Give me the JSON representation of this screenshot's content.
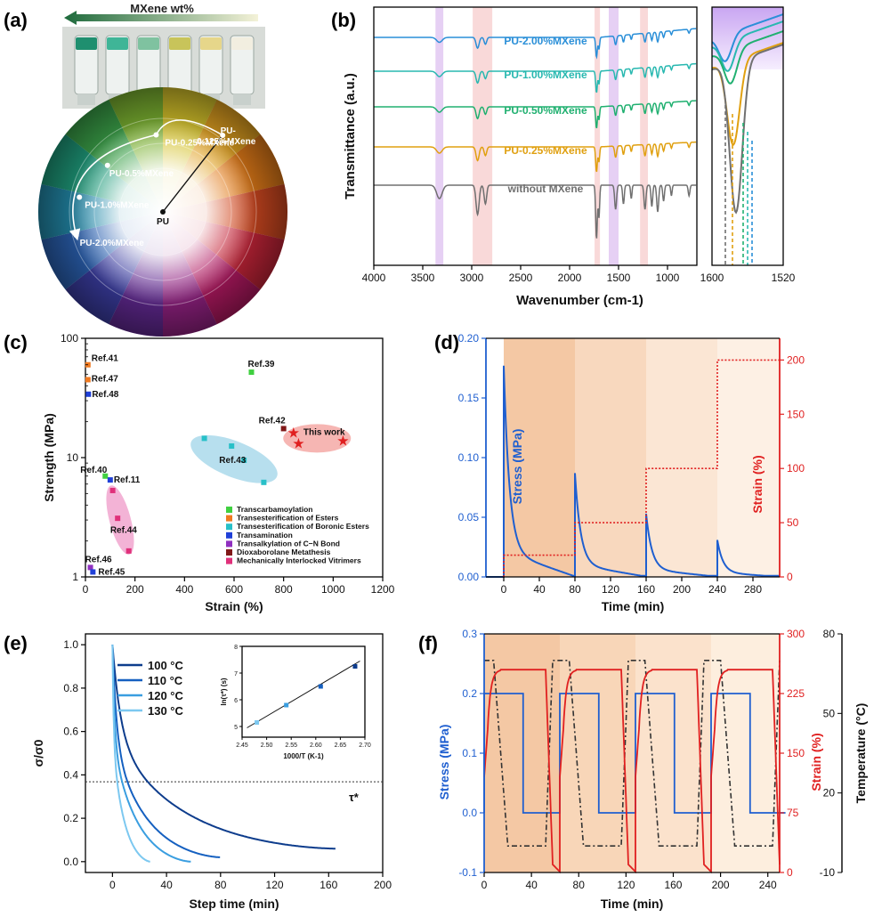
{
  "panels": {
    "a": "(a)",
    "b": "(b)",
    "c": "(c)",
    "d": "(d)",
    "e": "(e)",
    "f": "(f)"
  },
  "panel_a": {
    "arrow_label": "MXene wt%",
    "center_label": "PU",
    "points": [
      "PU-0.125%MXene",
      "PU-0.25%MXene",
      "PU-0.5%MXene",
      "PU-1.0%MXene",
      "PU-2.0%MXene"
    ],
    "vial_colors": [
      "#1f8f6f",
      "#3fb597",
      "#7fc2a0",
      "#c8c45a",
      "#e6d68a",
      "#f2eee0"
    ],
    "wheel_colors": [
      "#d4c12a",
      "#e0a020",
      "#e07a18",
      "#d04820",
      "#c42438",
      "#b01860",
      "#902080",
      "#602890",
      "#3a3ca0",
      "#2a60b0",
      "#2288a8",
      "#1e9a7a",
      "#3aa048",
      "#7ab030"
    ]
  },
  "chart_data": [
    {
      "id": "b",
      "type": "line",
      "xlabel": "Wavenumber (cm-1)",
      "ylabel": "Transmittance (a.u.)",
      "xlim": [
        4000,
        700
      ],
      "x_ticks": [
        4000,
        3500,
        3000,
        2500,
        2000,
        1500,
        1000
      ],
      "inset_xlim": [
        1600,
        1520
      ],
      "inset_ticks": [
        "1600",
        "1520"
      ],
      "highlight_bands": [
        {
          "from": 3370,
          "to": 3290,
          "color": "#e2c8f2"
        },
        {
          "from": 2990,
          "to": 2790,
          "color": "#f8d2d2"
        },
        {
          "from": 1745,
          "to": 1690,
          "color": "#f8d2d2"
        },
        {
          "from": 1600,
          "to": 1500,
          "color": "#e2c8f2"
        },
        {
          "from": 1280,
          "to": 1200,
          "color": "#f8d2d2"
        }
      ],
      "series": [
        {
          "name": "PU-2.00%MXene",
          "color": "#2a8fd8"
        },
        {
          "name": "PU-1.00%MXene",
          "color": "#28b8b0"
        },
        {
          "name": "PU-0.50%MXene",
          "color": "#20b070"
        },
        {
          "name": "PU-0.25%MXene",
          "color": "#e0a010"
        },
        {
          "name": "without MXene",
          "color": "#707070"
        }
      ]
    },
    {
      "id": "c",
      "type": "scatter",
      "xlabel": "Strain (%)",
      "ylabel": "Strength (MPa)",
      "xlim": [
        0,
        1200
      ],
      "ylim": [
        1,
        100
      ],
      "log_y": true,
      "x_ticks": [
        0,
        200,
        400,
        600,
        800,
        1000,
        1200
      ],
      "y_ticks": [
        1,
        10,
        100
      ],
      "points": [
        {
          "label": "Ref.41",
          "x": 10,
          "y": 60,
          "color": "#f07a20"
        },
        {
          "label": "Ref.47",
          "x": 10,
          "y": 45,
          "color": "#f07a20"
        },
        {
          "label": "Ref.48",
          "x": 12,
          "y": 34,
          "color": "#2040d8"
        },
        {
          "label": "Ref.39",
          "x": 670,
          "y": 52,
          "color": "#40d040"
        },
        {
          "label": "Ref.42",
          "x": 800,
          "y": 17.5,
          "color": "#801818"
        },
        {
          "label": "Ref.40",
          "x": 80,
          "y": 7,
          "color": "#40d040"
        },
        {
          "label": "Ref.11",
          "x": 100,
          "y": 6.5,
          "color": "#2040d8"
        },
        {
          "label": "Ref.46",
          "x": 20,
          "y": 1.2,
          "color": "#9030c0"
        },
        {
          "label": "Ref.45",
          "x": 30,
          "y": 1.1,
          "color": "#2040d8"
        }
      ],
      "group_43": [
        [
          480,
          14.5
        ],
        [
          590,
          12.5
        ],
        [
          640,
          9.5
        ],
        [
          720,
          6.2
        ]
      ],
      "group_44": [
        [
          110,
          5.3
        ],
        [
          130,
          3.1
        ],
        [
          175,
          1.65
        ]
      ],
      "this_work": [
        [
          840,
          16
        ],
        [
          860,
          13
        ],
        [
          1040,
          13.8
        ]
      ],
      "label_43": "Ref.43",
      "label_44": "Ref.44",
      "label_this_work": "This work",
      "legend": [
        {
          "name": "Transcarbamoylation",
          "color": "#40d040"
        },
        {
          "name": "Transesterification of Esters",
          "color": "#f07a20"
        },
        {
          "name": "Transesterification of Boronic Esters",
          "color": "#28c0c8"
        },
        {
          "name": "Transamination",
          "color": "#2040d8"
        },
        {
          "name": "Transalkylation of C−N Bond",
          "color": "#9030c0"
        },
        {
          "name": "Dioxaborolane Metathesis",
          "color": "#801818"
        },
        {
          "name": "Mechanically Interlocked Vitrimers",
          "color": "#e0307a"
        }
      ]
    },
    {
      "id": "d",
      "type": "line",
      "xlabel": "Time (min)",
      "ylabel": "Stress (MPa)",
      "ylabel2": "Strain (%)",
      "xlim": [
        -20,
        310
      ],
      "ylim": [
        0,
        0.2
      ],
      "y2lim": [
        0,
        220
      ],
      "x_ticks": [
        0,
        40,
        80,
        120,
        160,
        200,
        240,
        280
      ],
      "y_ticks": [
        0.0,
        0.05,
        0.1,
        0.15,
        0.2
      ],
      "y_tick_labels": [
        "0.00",
        "0.05",
        "0.10",
        "0.15",
        "0.20"
      ],
      "y2_ticks": [
        0,
        50,
        100,
        150,
        200
      ],
      "stages": [
        {
          "start": 0,
          "end": 80,
          "peak": 0.177,
          "strain": 20
        },
        {
          "start": 80,
          "end": 160,
          "peak": 0.087,
          "strain": 50
        },
        {
          "start": 160,
          "end": 240,
          "peak": 0.053,
          "strain": 100
        },
        {
          "start": 240,
          "end": 310,
          "peak": 0.031,
          "strain": 200
        }
      ],
      "stress_color": "#1f5fd0",
      "strain_color": "#e02020"
    },
    {
      "id": "e",
      "type": "line",
      "xlabel": "Step time (min)",
      "ylabel": "σ/σ0",
      "xlim": [
        -20,
        200
      ],
      "ylim": [
        -0.05,
        1.05
      ],
      "x_ticks": [
        0,
        40,
        80,
        120,
        160,
        200
      ],
      "y_ticks": [
        0.0,
        0.2,
        0.4,
        0.6,
        0.8,
        1.0
      ],
      "y_tick_labels": [
        "0.0",
        "0.2",
        "0.4",
        "0.6",
        "0.8",
        "1.0"
      ],
      "threshold": 0.368,
      "threshold_label": "τ*",
      "series": [
        {
          "name": "100 °C",
          "color": "#0d3c8c",
          "end": 165,
          "final": 0.06
        },
        {
          "name": "110 °C",
          "color": "#1560c0",
          "end": 80,
          "final": 0.02
        },
        {
          "name": "120 °C",
          "color": "#3a9ee0",
          "end": 58,
          "final": 0.0
        },
        {
          "name": "130 °C",
          "color": "#7cc8f0",
          "end": 28,
          "final": 0.0
        }
      ],
      "inset": {
        "xlabel": "1000/T (K-1)",
        "ylabel": "ln(τ*) (s)",
        "xlim": [
          2.45,
          2.7
        ],
        "ylim": [
          4.6,
          8.0
        ],
        "x_ticks": [
          "2.45",
          "2.50",
          "2.55",
          "2.60",
          "2.65",
          "2.70"
        ],
        "y_ticks": [
          "5",
          "6",
          "7",
          "8"
        ],
        "points": [
          [
            2.48,
            5.15
          ],
          [
            2.54,
            5.8
          ],
          [
            2.61,
            6.5
          ],
          [
            2.68,
            7.25
          ]
        ],
        "point_colors": [
          "#7cc8f0",
          "#3a9ee0",
          "#1560c0",
          "#0d3c8c"
        ]
      }
    },
    {
      "id": "f",
      "type": "line",
      "xlabel": "Time (min)",
      "ylabel": "Stress (MPa)",
      "ylabel2": "Strain (%)",
      "ylabel3": "Temperature (°C)",
      "xlim": [
        0,
        250
      ],
      "ylim": [
        -0.1,
        0.3
      ],
      "y2lim": [
        0,
        300
      ],
      "y3lim": [
        -10,
        80
      ],
      "x_ticks": [
        0,
        40,
        80,
        120,
        160,
        200,
        240
      ],
      "y_ticks": [
        -0.1,
        0.0,
        0.1,
        0.2,
        0.3
      ],
      "y_tick_labels": [
        "-0.1",
        "0.0",
        "0.1",
        "0.2",
        "0.3"
      ],
      "y2_ticks": [
        0,
        75,
        150,
        225,
        300
      ],
      "y3_ticks": [
        -10,
        20,
        50,
        80
      ],
      "stress_high": 0.2,
      "stress_low": 0.0,
      "strain_high": 255,
      "strain_low": 0,
      "temp_high": 70,
      "temp_low": 0,
      "cycles": 4,
      "stress_color": "#1f5fd0",
      "strain_color": "#e02020",
      "temp_color": "#333333"
    }
  ]
}
